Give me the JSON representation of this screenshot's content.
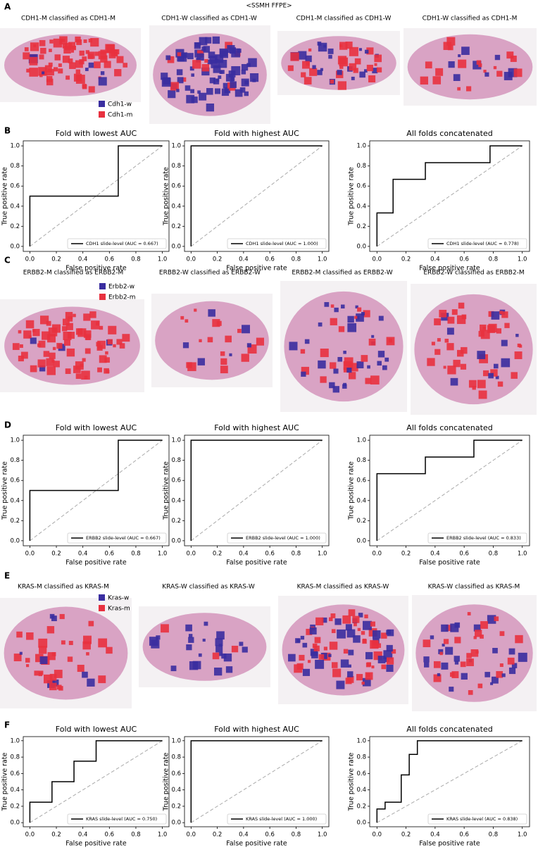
{
  "title": "<SSMH FFPE>",
  "image_panels": [
    {
      "label": "A",
      "captions": [
        "CDH1-M classified as CDH1-M",
        "CDH1-W classified as CDH1-W",
        "CDH1-M classified as CDH1-W",
        "CDH1-W classified as CDH1-M"
      ],
      "legend": [
        {
          "name": "Cdh1-w",
          "color": "#3a2ea0"
        },
        {
          "name": "Cdh1-m",
          "color": "#e8313f"
        }
      ]
    },
    {
      "label": "C",
      "captions": [
        "ERBB2-M classified as ERBB2-M",
        "ERBB2-W classified as ERBB2-W",
        "ERBB2-M classified as ERBB2-W",
        "ERBB2-W classified as ERBB2-M"
      ],
      "legend": [
        {
          "name": "Erbb2-w",
          "color": "#3a2ea0"
        },
        {
          "name": "Erbb2-m",
          "color": "#e8313f"
        }
      ]
    },
    {
      "label": "E",
      "captions": [
        "KRAS-M classified as KRAS-M",
        "KRAS-W classified as KRAS-W",
        "KRAS-M classified as KRAS-W",
        "KRAS-W classified as KRAS-M"
      ],
      "legend": [
        {
          "name": "Kras-w",
          "color": "#3a2ea0"
        },
        {
          "name": "Kras-m",
          "color": "#e8313f"
        }
      ]
    }
  ],
  "roc_panel_labels": [
    "B",
    "D",
    "F"
  ],
  "chart_data": [
    {
      "type": "line",
      "title": "Fold with lowest AUC",
      "xlabel": "False positive rate",
      "ylabel": "True positive rate",
      "xlim": [
        -0.05,
        1.05
      ],
      "ylim": [
        -0.05,
        1.05
      ],
      "xticks": [
        {
          "value": 0,
          "label": "0.0"
        },
        0.2,
        0.4,
        0.6,
        0.8,
        {
          "value": 1,
          "label": "1.0"
        }
      ],
      "yticks": [
        {
          "value": 0,
          "label": "0.0"
        },
        0.2,
        0.4,
        0.6,
        0.8,
        {
          "value": 1,
          "label": "1.0"
        }
      ],
      "chance_line": true,
      "legend": "lower right",
      "series": [
        {
          "name": "CDH1 slide-level (AUC = 0.667)",
          "color": "#000000",
          "x": [
            0,
            0,
            0.667,
            0.667,
            1
          ],
          "values": [
            0,
            0.5,
            0.5,
            1,
            1
          ]
        }
      ]
    },
    {
      "type": "line",
      "title": "Fold with highest AUC",
      "xlabel": "False positive rate",
      "ylabel": "True positive rate",
      "xlim": [
        -0.05,
        1.05
      ],
      "ylim": [
        -0.05,
        1.05
      ],
      "xticks": [
        {
          "value": 0,
          "label": "0.0"
        },
        0.2,
        0.4,
        0.6,
        0.8,
        {
          "value": 1,
          "label": "1.0"
        }
      ],
      "yticks": [
        {
          "value": 0,
          "label": "0.0"
        },
        0.2,
        0.4,
        0.6,
        0.8,
        {
          "value": 1,
          "label": "1.0"
        }
      ],
      "chance_line": true,
      "legend": "lower right",
      "series": [
        {
          "name": "CDH1 slide-level (AUC = 1.000)",
          "color": "#000000",
          "x": [
            0,
            0,
            1
          ],
          "values": [
            0,
            1,
            1
          ]
        }
      ]
    },
    {
      "type": "line",
      "title": "All folds concatenated",
      "xlabel": "False positive rate",
      "ylabel": "True positive rate",
      "xlim": [
        -0.05,
        1.05
      ],
      "ylim": [
        -0.05,
        1.05
      ],
      "xticks": [
        {
          "value": 0,
          "label": "0.0"
        },
        0.2,
        0.4,
        0.6,
        0.8,
        {
          "value": 1,
          "label": "1.0"
        }
      ],
      "yticks": [
        {
          "value": 0,
          "label": "0.0"
        },
        0.2,
        0.4,
        0.6,
        0.8,
        {
          "value": 1,
          "label": "1.0"
        }
      ],
      "chance_line": true,
      "legend": "lower right",
      "series": [
        {
          "name": "CDH1 slide-level (AUC = 0.778)",
          "color": "#000000",
          "x": [
            0,
            0,
            0.111,
            0.111,
            0.333,
            0.333,
            0.778,
            0.778,
            1
          ],
          "values": [
            0,
            0.333,
            0.333,
            0.667,
            0.667,
            0.833,
            0.833,
            1,
            1
          ]
        }
      ]
    },
    {
      "type": "line",
      "title": "Fold with lowest AUC",
      "xlabel": "False positive rate",
      "ylabel": "True positive rate",
      "xlim": [
        -0.05,
        1.05
      ],
      "ylim": [
        -0.05,
        1.05
      ],
      "xticks": [
        {
          "value": 0,
          "label": "0.0"
        },
        0.2,
        0.4,
        0.6,
        0.8,
        {
          "value": 1,
          "label": "1.0"
        }
      ],
      "yticks": [
        {
          "value": 0,
          "label": "0.0"
        },
        0.2,
        0.4,
        0.6,
        0.8,
        {
          "value": 1,
          "label": "1.0"
        }
      ],
      "chance_line": true,
      "legend": "lower right",
      "series": [
        {
          "name": "ERBB2 slide-level (AUC = 0.667)",
          "color": "#000000",
          "x": [
            0,
            0,
            0.667,
            0.667,
            1
          ],
          "values": [
            0,
            0.5,
            0.5,
            1,
            1
          ]
        }
      ]
    },
    {
      "type": "line",
      "title": "Fold with highest AUC",
      "xlabel": "False positive rate",
      "ylabel": "True positive rate",
      "xlim": [
        -0.05,
        1.05
      ],
      "ylim": [
        -0.05,
        1.05
      ],
      "xticks": [
        {
          "value": 0,
          "label": "0.0"
        },
        0.2,
        0.4,
        0.6,
        0.8,
        {
          "value": 1,
          "label": "1.0"
        }
      ],
      "yticks": [
        {
          "value": 0,
          "label": "0.0"
        },
        0.2,
        0.4,
        0.6,
        0.8,
        {
          "value": 1,
          "label": "1.0"
        }
      ],
      "chance_line": true,
      "legend": "lower right",
      "series": [
        {
          "name": "ERBB2 slide-level (AUC = 1.000)",
          "color": "#000000",
          "x": [
            0,
            0,
            1
          ],
          "values": [
            0,
            1,
            1
          ]
        }
      ]
    },
    {
      "type": "line",
      "title": "All folds concatenated",
      "xlabel": "False positive rate",
      "ylabel": "True positive rate",
      "xlim": [
        -0.05,
        1.05
      ],
      "ylim": [
        -0.05,
        1.05
      ],
      "xticks": [
        {
          "value": 0,
          "label": "0.0"
        },
        0.2,
        0.4,
        0.6,
        0.8,
        {
          "value": 1,
          "label": "1.0"
        }
      ],
      "yticks": [
        {
          "value": 0,
          "label": "0.0"
        },
        0.2,
        0.4,
        0.6,
        0.8,
        {
          "value": 1,
          "label": "1.0"
        }
      ],
      "chance_line": true,
      "legend": "lower right",
      "series": [
        {
          "name": "ERBB2 slide-level (AUC = 0.833)",
          "color": "#000000",
          "x": [
            0,
            0,
            0.333,
            0.333,
            0.667,
            0.667,
            1
          ],
          "values": [
            0,
            0.667,
            0.667,
            0.833,
            0.833,
            1,
            1
          ]
        }
      ]
    },
    {
      "type": "line",
      "title": "Fold with lowest AUC",
      "xlabel": "False positive rate",
      "ylabel": "True positive rate",
      "xlim": [
        -0.05,
        1.05
      ],
      "ylim": [
        -0.05,
        1.05
      ],
      "xticks": [
        {
          "value": 0,
          "label": "0.0"
        },
        0.2,
        0.4,
        0.6,
        0.8,
        {
          "value": 1,
          "label": "1.0"
        }
      ],
      "yticks": [
        {
          "value": 0,
          "label": "0.0"
        },
        0.2,
        0.4,
        0.6,
        0.8,
        {
          "value": 1,
          "label": "1.0"
        }
      ],
      "chance_line": true,
      "legend": "lower right",
      "series": [
        {
          "name": "KRAS slide-level (AUC = 0.750)",
          "color": "#000000",
          "x": [
            0,
            0,
            0.167,
            0.167,
            0.333,
            0.333,
            0.5,
            0.5,
            1
          ],
          "values": [
            0,
            0.25,
            0.25,
            0.5,
            0.5,
            0.75,
            0.75,
            1,
            1
          ]
        }
      ]
    },
    {
      "type": "line",
      "title": "Fold with highest AUC",
      "xlabel": "False positive rate",
      "ylabel": "True positive rate",
      "xlim": [
        -0.05,
        1.05
      ],
      "ylim": [
        -0.05,
        1.05
      ],
      "xticks": [
        {
          "value": 0,
          "label": "0.0"
        },
        0.2,
        0.4,
        0.6,
        0.8,
        {
          "value": 1,
          "label": "1.0"
        }
      ],
      "yticks": [
        {
          "value": 0,
          "label": "0.0"
        },
        0.2,
        0.4,
        0.6,
        0.8,
        {
          "value": 1,
          "label": "1.0"
        }
      ],
      "chance_line": true,
      "legend": "lower right",
      "series": [
        {
          "name": "KRAS slide-level (AUC = 1.000)",
          "color": "#000000",
          "x": [
            0,
            0,
            1
          ],
          "values": [
            0,
            1,
            1
          ]
        }
      ]
    },
    {
      "type": "line",
      "title": "All folds concatenated",
      "xlabel": "False positive rate",
      "ylabel": "True positive rate",
      "xlim": [
        -0.05,
        1.05
      ],
      "ylim": [
        -0.05,
        1.05
      ],
      "xticks": [
        {
          "value": 0,
          "label": "0.0"
        },
        0.2,
        0.4,
        0.6,
        0.8,
        {
          "value": 1,
          "label": "1.0"
        }
      ],
      "yticks": [
        {
          "value": 0,
          "label": "0.0"
        },
        0.2,
        0.4,
        0.6,
        0.8,
        {
          "value": 1,
          "label": "1.0"
        }
      ],
      "chance_line": true,
      "legend": "lower right",
      "series": [
        {
          "name": "KRAS slide-level (AUC = 0.838)",
          "color": "#000000",
          "x": [
            0,
            0,
            0.056,
            0.056,
            0.167,
            0.167,
            0.222,
            0.222,
            0.278,
            0.278,
            1
          ],
          "values": [
            0,
            0.167,
            0.167,
            0.25,
            0.25,
            0.583,
            0.583,
            0.833,
            0.833,
            1,
            1
          ]
        }
      ]
    }
  ]
}
